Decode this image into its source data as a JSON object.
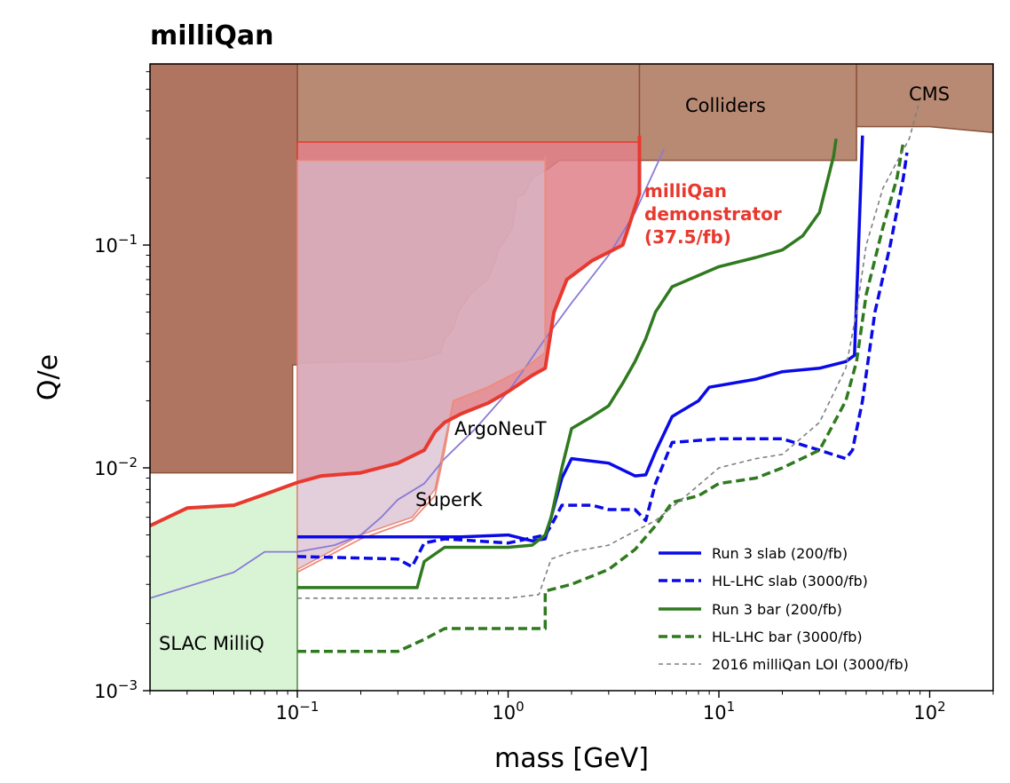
{
  "chart_data": {
    "type": "line",
    "title": "milliQan",
    "xlabel": "mass [GeV]",
    "ylabel": "Q/e",
    "xscale": "log",
    "yscale": "log",
    "xlim": [
      0.02,
      200
    ],
    "ylim": [
      0.001,
      0.65
    ],
    "x_tick_labels": [
      {
        "base": "10",
        "exp": "−1",
        "value": 0.1
      },
      {
        "base": "10",
        "exp": "0",
        "value": 1
      },
      {
        "base": "10",
        "exp": "1",
        "value": 10
      },
      {
        "base": "10",
        "exp": "2",
        "value": 100
      }
    ],
    "y_tick_labels": [
      {
        "base": "10",
        "exp": "−3",
        "value": 0.001
      },
      {
        "base": "10",
        "exp": "−2",
        "value": 0.01
      },
      {
        "base": "10",
        "exp": "−1",
        "value": 0.1
      }
    ],
    "excluded_regions": [
      {
        "name": "Colliders",
        "label": "Colliders",
        "fill": "#b88a73",
        "edge": "#8b5238",
        "points": [
          [
            4.2,
            0.65
          ],
          [
            4.2,
            0.24
          ],
          [
            1.75,
            0.24
          ],
          [
            1.55,
            0.22
          ],
          [
            1.3,
            0.2
          ],
          [
            1.2,
            0.17
          ],
          [
            1.1,
            0.165
          ],
          [
            1.05,
            0.12
          ],
          [
            0.9,
            0.095
          ],
          [
            0.85,
            0.08
          ],
          [
            0.8,
            0.07
          ],
          [
            0.72,
            0.065
          ],
          [
            0.66,
            0.06
          ],
          [
            0.62,
            0.055
          ],
          [
            0.58,
            0.05
          ],
          [
            0.55,
            0.042
          ],
          [
            0.5,
            0.038
          ],
          [
            0.48,
            0.033
          ],
          [
            0.4,
            0.031
          ],
          [
            0.3,
            0.03
          ],
          [
            0.18,
            0.03
          ],
          [
            0.1,
            0.0295
          ],
          [
            0.1,
            0.65
          ]
        ]
      },
      {
        "name": "Colliders-high",
        "label": "",
        "fill": "#b88a73",
        "edge": "#8b5238",
        "points": [
          [
            4.2,
            0.65
          ],
          [
            4.2,
            0.24
          ],
          [
            45,
            0.24
          ],
          [
            45,
            0.65
          ]
        ]
      },
      {
        "name": "CMS",
        "label": "CMS",
        "fill": "#b88a73",
        "edge": "#8b5238",
        "points": [
          [
            45,
            0.65
          ],
          [
            45,
            0.34
          ],
          [
            100,
            0.34
          ],
          [
            140,
            0.33
          ],
          [
            200,
            0.32
          ],
          [
            200,
            0.65
          ]
        ]
      },
      {
        "name": "Early-bound",
        "label": "",
        "fill": "#b07560",
        "edge": "#8b5238",
        "points": [
          [
            0.02,
            0.65
          ],
          [
            0.02,
            0.0095
          ],
          [
            0.095,
            0.0095
          ],
          [
            0.095,
            0.029
          ],
          [
            0.1,
            0.029
          ],
          [
            0.1,
            0.65
          ]
        ]
      },
      {
        "name": "SLAC MilliQ",
        "label": "SLAC MilliQ",
        "fill": "#d8f4d4",
        "edge": "#4a8a3a",
        "points": [
          [
            0.02,
            0.001
          ],
          [
            0.02,
            0.0055
          ],
          [
            0.03,
            0.0066
          ],
          [
            0.05,
            0.0068
          ],
          [
            0.07,
            0.0076
          ],
          [
            0.1,
            0.0086
          ],
          [
            0.1,
            0.001
          ]
        ]
      },
      {
        "name": "Demonstrator",
        "label": "",
        "fill": "#e0808a",
        "edge": "#e8392f",
        "opacity": 0.85,
        "points": [
          [
            0.1,
            0.0086
          ],
          [
            0.13,
            0.0092
          ],
          [
            0.2,
            0.0095
          ],
          [
            0.3,
            0.0105
          ],
          [
            0.4,
            0.012
          ],
          [
            0.45,
            0.0145
          ],
          [
            0.5,
            0.016
          ],
          [
            0.6,
            0.0175
          ],
          [
            0.8,
            0.0195
          ],
          [
            1.0,
            0.022
          ],
          [
            1.3,
            0.026
          ],
          [
            1.5,
            0.028
          ],
          [
            1.65,
            0.05
          ],
          [
            1.9,
            0.07
          ],
          [
            2.5,
            0.085
          ],
          [
            3.5,
            0.1
          ],
          [
            4.2,
            0.17
          ],
          [
            4.2,
            0.29
          ],
          [
            0.1,
            0.29
          ]
        ]
      },
      {
        "name": "SuperK-region",
        "label": "",
        "fill": "#d7b9cc",
        "edge": "#e8897c",
        "opacity": 0.7,
        "points": [
          [
            0.1,
            0.0035
          ],
          [
            0.2,
            0.005
          ],
          [
            0.35,
            0.006
          ],
          [
            0.45,
            0.008
          ],
          [
            0.5,
            0.013
          ],
          [
            0.55,
            0.02
          ],
          [
            0.8,
            0.023
          ],
          [
            1.2,
            0.028
          ],
          [
            1.5,
            0.033
          ],
          [
            1.5,
            0.24
          ],
          [
            0.1,
            0.24
          ]
        ]
      }
    ],
    "series": [
      {
        "name": "ArgoNeuT",
        "label": "ArgoNeuT",
        "color": "#8a7ad6",
        "width": 1.8,
        "dash": "",
        "points": [
          [
            0.02,
            0.0026
          ],
          [
            0.05,
            0.0034
          ],
          [
            0.07,
            0.0042
          ],
          [
            0.1,
            0.0042
          ],
          [
            0.15,
            0.0045
          ],
          [
            0.2,
            0.005
          ],
          [
            0.25,
            0.006
          ],
          [
            0.3,
            0.0072
          ],
          [
            0.4,
            0.0085
          ],
          [
            0.5,
            0.011
          ],
          [
            0.7,
            0.015
          ],
          [
            1.0,
            0.022
          ],
          [
            1.2,
            0.028
          ],
          [
            1.5,
            0.038
          ],
          [
            2,
            0.055
          ],
          [
            3,
            0.09
          ],
          [
            4,
            0.14
          ],
          [
            5.5,
            0.27
          ]
        ]
      },
      {
        "name": "SuperK",
        "label": "SuperK",
        "color": "#ef8a7a",
        "width": 1.8,
        "dash": "",
        "points": [
          [
            0.1,
            0.0034
          ],
          [
            0.2,
            0.0048
          ],
          [
            0.35,
            0.0058
          ],
          [
            0.45,
            0.0075
          ],
          [
            0.5,
            0.012
          ],
          [
            0.55,
            0.02
          ],
          [
            0.8,
            0.023
          ],
          [
            1.2,
            0.028
          ],
          [
            1.5,
            0.033
          ],
          [
            1.5,
            0.25
          ]
        ]
      },
      {
        "name": "milliQan demonstrator",
        "label": "milliQan demonstrator (37.5/fb)",
        "color": "#e8392f",
        "width": 4,
        "points": [
          [
            0.02,
            0.0055
          ],
          [
            0.03,
            0.0066
          ],
          [
            0.05,
            0.0068
          ],
          [
            0.07,
            0.0076
          ],
          [
            0.1,
            0.0086
          ],
          [
            0.13,
            0.0092
          ],
          [
            0.2,
            0.0095
          ],
          [
            0.3,
            0.0105
          ],
          [
            0.4,
            0.012
          ],
          [
            0.45,
            0.0145
          ],
          [
            0.5,
            0.016
          ],
          [
            0.6,
            0.0175
          ],
          [
            0.8,
            0.0195
          ],
          [
            1.0,
            0.022
          ],
          [
            1.3,
            0.026
          ],
          [
            1.5,
            0.028
          ],
          [
            1.65,
            0.05
          ],
          [
            1.9,
            0.07
          ],
          [
            2.5,
            0.085
          ],
          [
            3.5,
            0.1
          ],
          [
            4.2,
            0.17
          ],
          [
            4.2,
            0.31
          ]
        ]
      },
      {
        "name": "Run 3 slab",
        "label": "Run 3 slab (200/fb)",
        "color": "#0a0ae8",
        "width": 3.5,
        "dash": "",
        "points": [
          [
            0.1,
            0.0049
          ],
          [
            0.3,
            0.0049
          ],
          [
            0.6,
            0.0049
          ],
          [
            1.0,
            0.005
          ],
          [
            1.3,
            0.0047
          ],
          [
            1.5,
            0.0048
          ],
          [
            1.6,
            0.006
          ],
          [
            1.8,
            0.009
          ],
          [
            2,
            0.011
          ],
          [
            3,
            0.0105
          ],
          [
            4,
            0.0092
          ],
          [
            4.5,
            0.0093
          ],
          [
            5,
            0.0118
          ],
          [
            6,
            0.017
          ],
          [
            8,
            0.02
          ],
          [
            9,
            0.023
          ],
          [
            15,
            0.025
          ],
          [
            20,
            0.027
          ],
          [
            30,
            0.028
          ],
          [
            40,
            0.03
          ],
          [
            44,
            0.032
          ],
          [
            46,
            0.1
          ],
          [
            48,
            0.31
          ]
        ]
      },
      {
        "name": "HL-LHC slab",
        "label": "HL-LHC slab (3000/fb)",
        "color": "#0a0ae8",
        "width": 3.5,
        "dash": "10,5",
        "points": [
          [
            0.1,
            0.004
          ],
          [
            0.3,
            0.0039
          ],
          [
            0.35,
            0.0036
          ],
          [
            0.4,
            0.0046
          ],
          [
            0.5,
            0.0048
          ],
          [
            1.0,
            0.0046
          ],
          [
            1.5,
            0.005
          ],
          [
            1.6,
            0.0055
          ],
          [
            1.8,
            0.0068
          ],
          [
            2.5,
            0.0068
          ],
          [
            3,
            0.0065
          ],
          [
            4,
            0.0065
          ],
          [
            4.5,
            0.0058
          ],
          [
            5,
            0.0085
          ],
          [
            6,
            0.013
          ],
          [
            10,
            0.0135
          ],
          [
            20,
            0.0135
          ],
          [
            30,
            0.012
          ],
          [
            40,
            0.011
          ],
          [
            43,
            0.012
          ],
          [
            48,
            0.02
          ],
          [
            55,
            0.05
          ],
          [
            65,
            0.1
          ],
          [
            75,
            0.2
          ],
          [
            78,
            0.26
          ]
        ]
      },
      {
        "name": "Run 3 bar",
        "label": "Run 3 bar (200/fb)",
        "color": "#2f7a1f",
        "width": 3.5,
        "dash": "",
        "points": [
          [
            0.1,
            0.0029
          ],
          [
            0.37,
            0.0029
          ],
          [
            0.4,
            0.0038
          ],
          [
            0.5,
            0.0044
          ],
          [
            1.0,
            0.0044
          ],
          [
            1.3,
            0.0045
          ],
          [
            1.5,
            0.005
          ],
          [
            1.6,
            0.006
          ],
          [
            1.8,
            0.01
          ],
          [
            2,
            0.015
          ],
          [
            2.5,
            0.017
          ],
          [
            3,
            0.019
          ],
          [
            3.5,
            0.024
          ],
          [
            4,
            0.03
          ],
          [
            4.5,
            0.038
          ],
          [
            5,
            0.05
          ],
          [
            6,
            0.065
          ],
          [
            10,
            0.08
          ],
          [
            15,
            0.088
          ],
          [
            20,
            0.095
          ],
          [
            25,
            0.11
          ],
          [
            30,
            0.14
          ],
          [
            35,
            0.25
          ],
          [
            36,
            0.3
          ]
        ]
      },
      {
        "name": "HL-LHC bar",
        "label": "HL-LHC bar (3000/fb)",
        "color": "#2f7a1f",
        "width": 3.5,
        "dash": "10,5",
        "points": [
          [
            0.1,
            0.0015
          ],
          [
            0.3,
            0.0015
          ],
          [
            0.4,
            0.0017
          ],
          [
            0.5,
            0.0019
          ],
          [
            1.0,
            0.0019
          ],
          [
            1.5,
            0.0019
          ],
          [
            1.5,
            0.0028
          ],
          [
            2,
            0.003
          ],
          [
            3,
            0.0035
          ],
          [
            4,
            0.0043
          ],
          [
            5,
            0.0055
          ],
          [
            6,
            0.007
          ],
          [
            8,
            0.0075
          ],
          [
            10,
            0.0085
          ],
          [
            15,
            0.009
          ],
          [
            20,
            0.01
          ],
          [
            30,
            0.012
          ],
          [
            40,
            0.02
          ],
          [
            45,
            0.03
          ],
          [
            50,
            0.06
          ],
          [
            60,
            0.12
          ],
          [
            70,
            0.2
          ],
          [
            75,
            0.29
          ]
        ]
      },
      {
        "name": "2016 milliQan LOI",
        "label": "2016 milliQan LOI (3000/fb)",
        "color": "#7f7f7f",
        "width": 1.6,
        "dash": "5,4",
        "points": [
          [
            0.1,
            0.0026
          ],
          [
            0.3,
            0.0026
          ],
          [
            0.5,
            0.0026
          ],
          [
            1.0,
            0.0026
          ],
          [
            1.4,
            0.0027
          ],
          [
            1.6,
            0.0039
          ],
          [
            2,
            0.0042
          ],
          [
            3,
            0.0045
          ],
          [
            4,
            0.0052
          ],
          [
            5,
            0.0058
          ],
          [
            7,
            0.0075
          ],
          [
            10,
            0.01
          ],
          [
            15,
            0.011
          ],
          [
            20,
            0.0115
          ],
          [
            30,
            0.016
          ],
          [
            40,
            0.028
          ],
          [
            45,
            0.05
          ],
          [
            50,
            0.1
          ],
          [
            60,
            0.18
          ],
          [
            80,
            0.3
          ],
          [
            90,
            0.45
          ]
        ]
      }
    ],
    "annotations": [
      {
        "name": "colliders-label",
        "text": "Colliders"
      },
      {
        "name": "cms-label",
        "text": "CMS"
      },
      {
        "name": "slac-label",
        "text": "SLAC MilliQ"
      },
      {
        "name": "argoneut-label",
        "text": "ArgoNeuT"
      },
      {
        "name": "superk-label",
        "text": "SuperK"
      },
      {
        "name": "demo-label-1",
        "text": "milliQan"
      },
      {
        "name": "demo-label-2",
        "text": "demonstrator"
      },
      {
        "name": "demo-label-3",
        "text": "(37.5/fb)"
      }
    ],
    "legend": {
      "placement": "bottom-right",
      "entries": [
        {
          "label": "Run 3 slab (200/fb)",
          "color": "#0a0ae8",
          "dash": ""
        },
        {
          "label": "HL-LHC slab (3000/fb)",
          "color": "#0a0ae8",
          "dash": "10,5"
        },
        {
          "label": "Run 3 bar (200/fb)",
          "color": "#2f7a1f",
          "dash": ""
        },
        {
          "label": "HL-LHC bar (3000/fb)",
          "color": "#2f7a1f",
          "dash": "10,5"
        },
        {
          "label": "2016 milliQan LOI (3000/fb)",
          "color": "#7f7f7f",
          "dash": "5,4"
        }
      ]
    }
  }
}
